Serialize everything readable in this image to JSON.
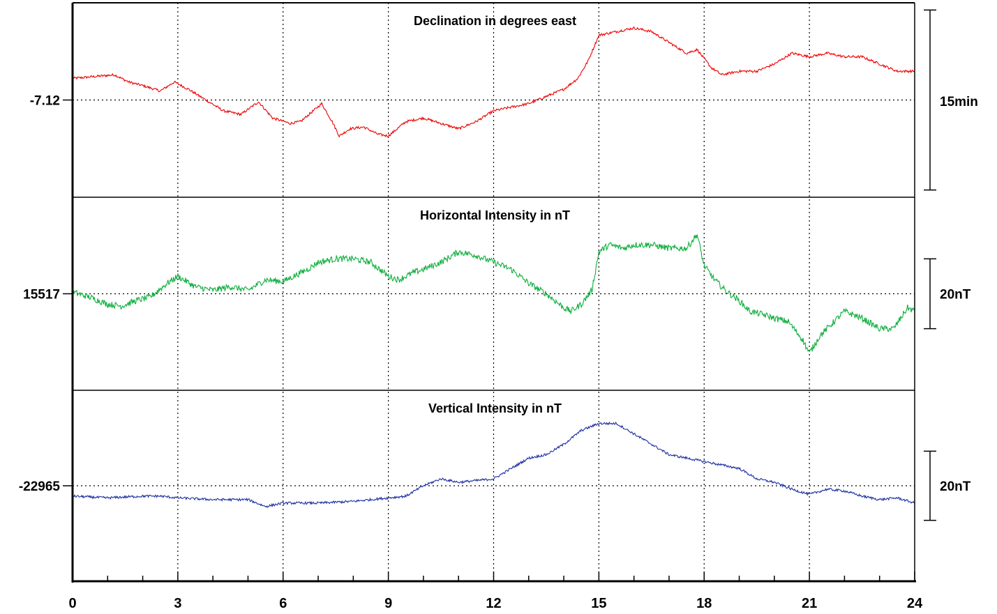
{
  "chart_data": {
    "type": "line",
    "header": {
      "left": "",
      "right": ""
    },
    "x_axis": {
      "range": [
        0,
        24
      ],
      "ticks": [
        0,
        3,
        6,
        9,
        12,
        15,
        18,
        21,
        24
      ],
      "tick_labels": [
        "0",
        "3",
        "6",
        "9",
        "12",
        "15",
        "18",
        "21",
        "24"
      ],
      "minor_step": 1,
      "vertical_grid": "dotted"
    },
    "panels": [
      {
        "id": "declination",
        "title": "Declination in degrees east",
        "color": "#ee0000",
        "reference_label": "-7.12",
        "reference_value": 0,
        "ylim": [
          -27,
          27
        ],
        "scale_label": "15min",
        "scale_bar": [
          -25,
          25
        ],
        "noise": 0.35,
        "x": [
          0,
          0.6,
          1.2,
          1.6,
          2.0,
          2.5,
          2.9,
          3.3,
          3.8,
          4.3,
          4.8,
          5.3,
          5.7,
          6.2,
          6.5,
          7.1,
          7.4,
          7.6,
          7.9,
          8.3,
          8.7,
          9.0,
          9.5,
          10.0,
          10.5,
          11.0,
          11.5,
          12.0,
          12.5,
          13.0,
          13.5,
          14.0,
          14.4,
          14.7,
          15.0,
          15.5,
          16.0,
          16.5,
          17.0,
          17.5,
          17.8,
          18.2,
          18.5,
          19.0,
          19.5,
          20.0,
          20.5,
          21.0,
          21.5,
          22.0,
          22.5,
          23.0,
          23.5,
          24.0
        ],
        "y": [
          6,
          6.5,
          7,
          5,
          4,
          2.5,
          5,
          3,
          0,
          -3,
          -4,
          -0.5,
          -5,
          -6.5,
          -6,
          -1,
          -6,
          -10,
          -8,
          -7.5,
          -9.5,
          -10,
          -6,
          -5,
          -6.5,
          -8,
          -6,
          -3,
          -2,
          -1,
          1,
          3,
          6,
          11,
          18,
          19,
          20,
          19,
          16,
          13,
          14,
          9,
          7,
          8,
          8,
          10,
          13,
          12,
          13,
          12,
          12,
          10,
          8,
          8
        ]
      },
      {
        "id": "horizontal",
        "title": "Horizontal Intensity in nT",
        "color": "#0cae3c",
        "reference_label": "15517",
        "reference_value": 0,
        "ylim": [
          -27.6,
          27.6
        ],
        "scale_label": "20nT",
        "scale_bar": [
          -10,
          10
        ],
        "noise": 0.9,
        "x": [
          0,
          0.5,
          1.0,
          1.4,
          1.8,
          2.2,
          2.7,
          3.0,
          3.5,
          4.0,
          4.5,
          5.0,
          5.5,
          6.0,
          6.3,
          6.7,
          7.0,
          7.5,
          8.0,
          8.5,
          9.0,
          9.3,
          9.7,
          10.0,
          10.5,
          11.0,
          11.5,
          12.0,
          12.5,
          13.0,
          13.5,
          14.0,
          14.2,
          14.5,
          14.8,
          15.0,
          15.3,
          15.7,
          16.0,
          16.5,
          17.0,
          17.5,
          17.8,
          18.0,
          18.3,
          18.6,
          19.0,
          19.3,
          19.7,
          20.0,
          20.4,
          20.8,
          21.0,
          21.3,
          21.6,
          22.0,
          22.5,
          23.0,
          23.4,
          23.8,
          24.0
        ],
        "y": [
          0.5,
          -1,
          -3,
          -3.5,
          -2,
          -1,
          3,
          5,
          2,
          1,
          2,
          1,
          4,
          3.5,
          5,
          7,
          9,
          10,
          10,
          9,
          5,
          4,
          6,
          7,
          9,
          12,
          11,
          9,
          7,
          3,
          0,
          -4,
          -5,
          -3,
          1,
          12,
          14,
          13,
          14,
          14,
          13,
          13,
          17,
          8,
          4,
          1,
          -2,
          -5,
          -6,
          -7,
          -8,
          -13,
          -17,
          -12,
          -9,
          -5,
          -7,
          -10,
          -10,
          -4,
          -5
        ]
      },
      {
        "id": "vertical",
        "title": "Vertical Intensity in nT",
        "color": "#1a2ea0",
        "reference_label": "-22965",
        "reference_value": 0,
        "ylim": [
          -27.6,
          27.6
        ],
        "scale_label": "20nT",
        "scale_bar": [
          -10,
          10
        ],
        "noise": 0.35,
        "x": [
          0,
          1.0,
          2.0,
          2.5,
          3.0,
          4.0,
          5.0,
          5.5,
          6.0,
          7.0,
          8.0,
          9.0,
          9.5,
          10.0,
          10.5,
          11.0,
          12.0,
          12.5,
          13.0,
          13.5,
          14.0,
          14.5,
          15.0,
          15.5,
          16.0,
          16.5,
          17.0,
          18.0,
          18.5,
          19.0,
          19.5,
          20.0,
          20.5,
          21.0,
          21.5,
          22.0,
          22.5,
          23.0,
          23.5,
          24.0
        ],
        "y": [
          -3,
          -3.5,
          -3,
          -3,
          -3.5,
          -4,
          -4,
          -6,
          -5,
          -5,
          -4.5,
          -3.5,
          -3,
          0,
          2,
          1,
          2,
          5,
          8,
          9,
          12,
          16,
          18,
          18,
          15,
          12,
          9,
          7,
          6,
          5,
          2,
          1,
          -1,
          -2.5,
          -1,
          -1.5,
          -3,
          -4,
          -3.5,
          -5
        ]
      }
    ]
  }
}
